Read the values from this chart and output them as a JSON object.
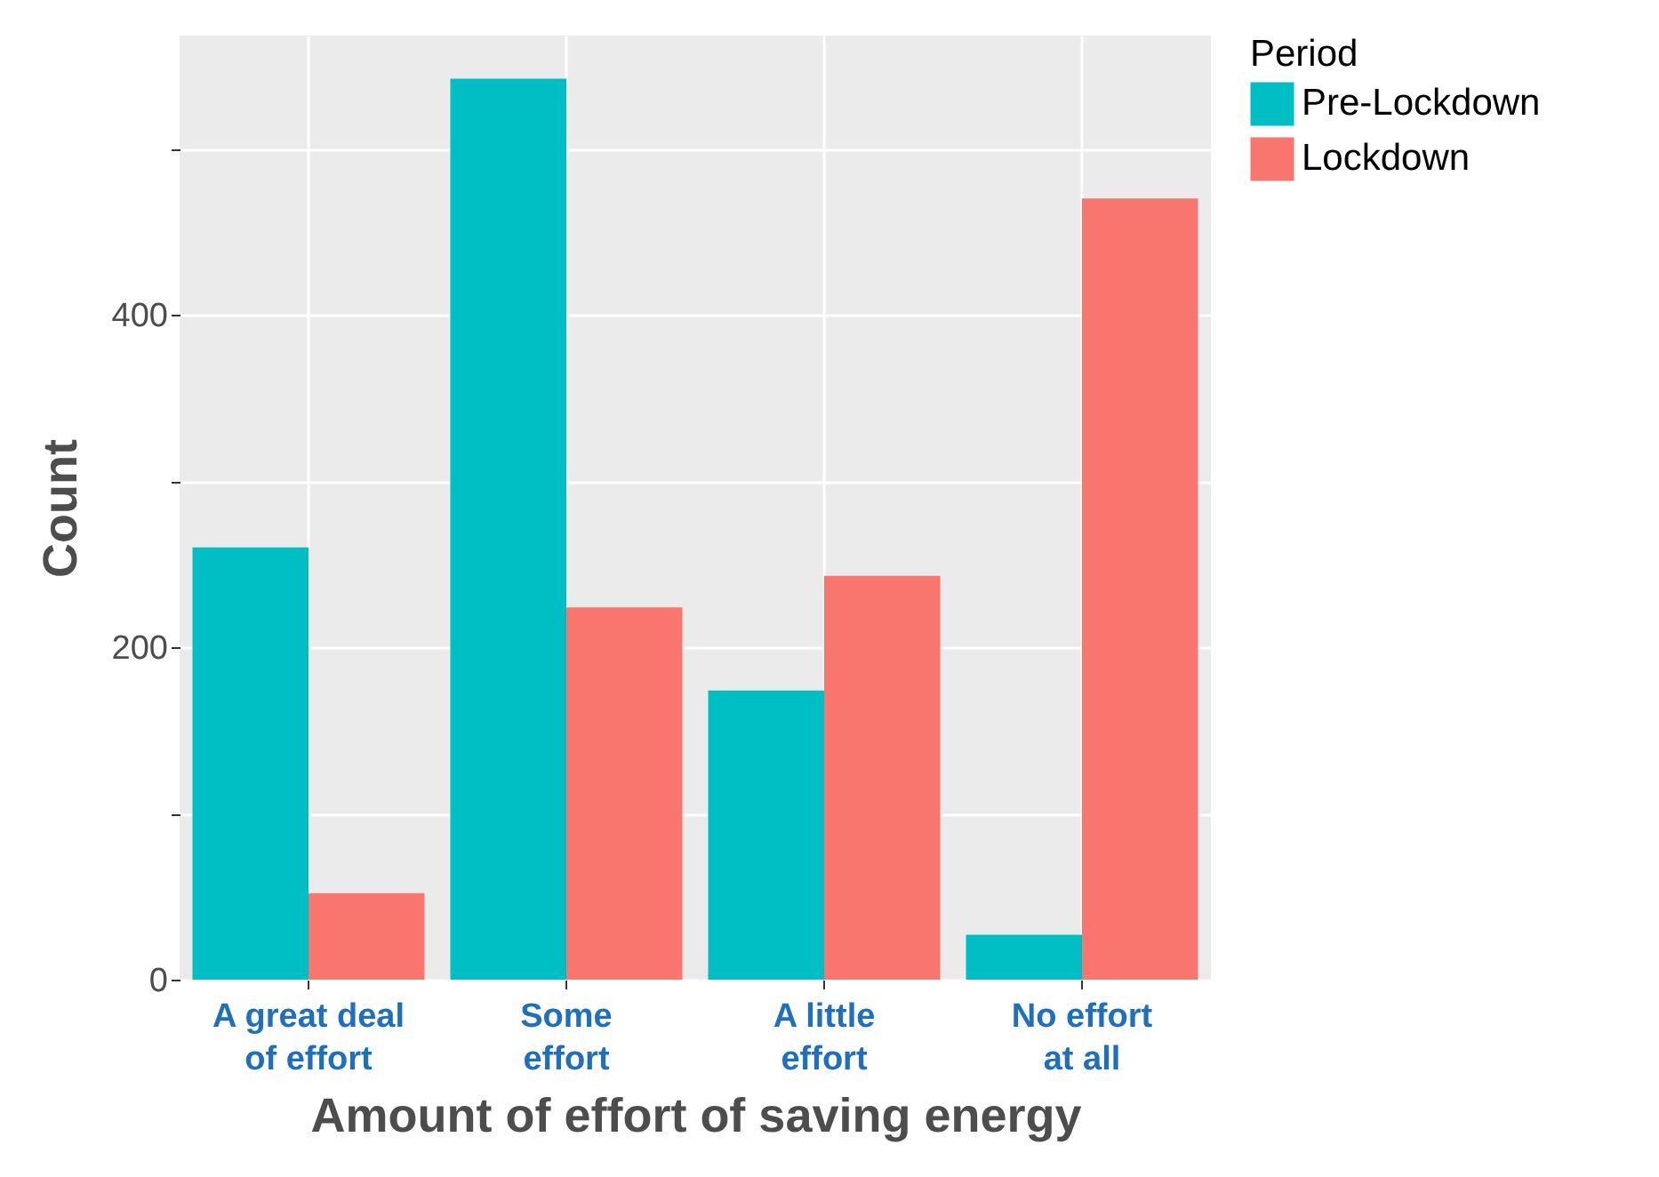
{
  "chart_data": {
    "type": "bar",
    "xlabel": "Amount of effort of saving energy",
    "ylabel": "Count",
    "legend_title": "Period",
    "categories": [
      "A great deal\nof effort",
      "Some\neffort",
      "A little\neffort",
      "No effort\nat all"
    ],
    "series": [
      {
        "name": "Pre-Lockdown",
        "color": "#00bfc4",
        "values": [
          260,
          542,
          174,
          27
        ]
      },
      {
        "name": "Lockdown",
        "color": "#f8766d",
        "values": [
          52,
          224,
          243,
          470
        ]
      }
    ],
    "ylim": [
      0,
      568
    ],
    "yticks": [
      0,
      {
        "value": 100,
        "label": null
      },
      200,
      {
        "value": 300,
        "label": null
      },
      400,
      {
        "value": 500,
        "label": null
      }
    ],
    "grid": true,
    "legend": "right"
  }
}
